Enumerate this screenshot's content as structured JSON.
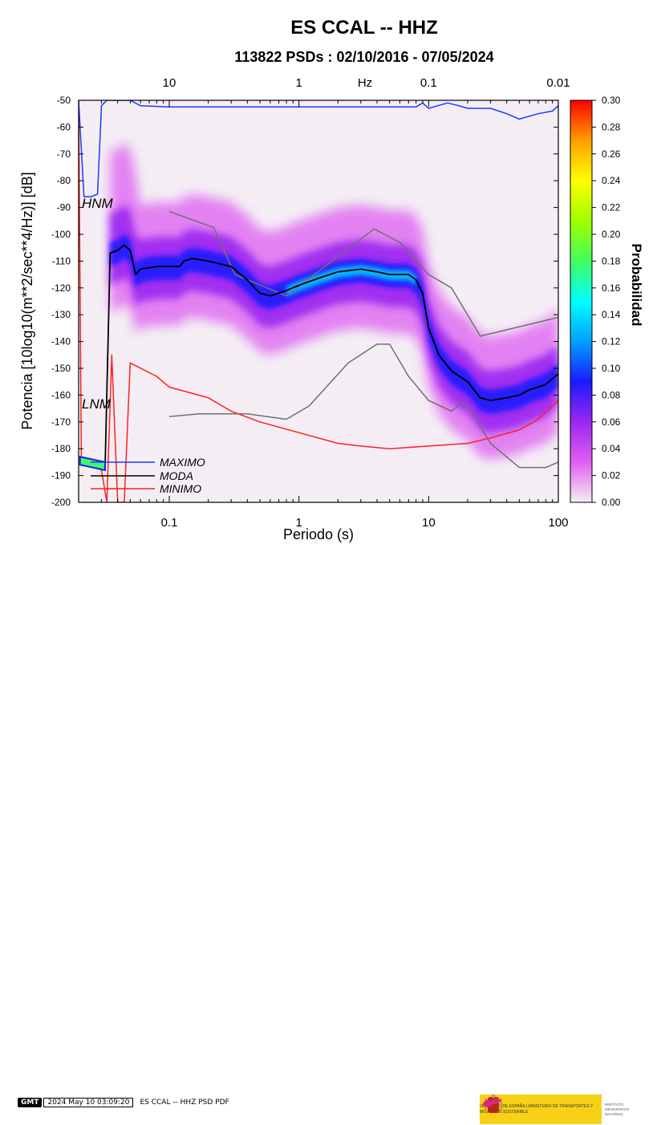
{
  "chart_data": {
    "type": "heatmap",
    "title": "ES CCAL -- HHZ",
    "subtitle": "113822 PSDs : 02/10/2016 - 07/05/2024",
    "xlabel": "Periodo (s)",
    "ylabel": "Potencia [10log10(m**2/sec**4/Hz)] [dB]",
    "x_scale": "log",
    "xlim": [
      0.02,
      100
    ],
    "ylim": [
      -200,
      -50
    ],
    "x_ticks": [
      "0.1",
      "1",
      "10",
      "100"
    ],
    "y_ticks": [
      "-50",
      "-60",
      "-70",
      "-80",
      "-90",
      "-100",
      "-110",
      "-120",
      "-130",
      "-140",
      "-150",
      "-160",
      "-170",
      "-180",
      "-190",
      "-200"
    ],
    "top_axis": {
      "label": "Hz",
      "ticks": [
        {
          "freq": "10",
          "period": 0.1
        },
        {
          "freq": "1",
          "period": 1
        },
        {
          "freq": "0.1",
          "period": 10
        },
        {
          "freq": "0.01",
          "period": 100
        }
      ]
    },
    "colorbar": {
      "label": "Probabilidad",
      "range": [
        0,
        0.3
      ],
      "ticks": [
        "0.00",
        "0.02",
        "0.04",
        "0.06",
        "0.08",
        "0.10",
        "0.12",
        "0.14",
        "0.16",
        "0.18",
        "0.20",
        "0.22",
        "0.24",
        "0.26",
        "0.28",
        "0.30"
      ],
      "colors": [
        "#f4eef4",
        "#e060f0",
        "#9a28f0",
        "#1a1aff",
        "#00a0ff",
        "#00ffff",
        "#40ff60",
        "#a0ff00",
        "#ffff00",
        "#ffa000",
        "#ff0000"
      ]
    },
    "annotations": [
      "HNM",
      "LNM"
    ],
    "series": [
      {
        "name": "MAXIMO",
        "color": "#1a3aff",
        "points": [
          [
            0.02,
            -50
          ],
          [
            0.022,
            -86
          ],
          [
            0.025,
            -86
          ],
          [
            0.028,
            -85
          ],
          [
            0.03,
            -52
          ],
          [
            0.033,
            -50
          ],
          [
            0.05,
            -50
          ],
          [
            0.06,
            -52
          ],
          [
            0.1,
            -52.5
          ],
          [
            0.3,
            -52.5
          ],
          [
            1,
            -52.5
          ],
          [
            3,
            -52.5
          ],
          [
            8,
            -52.5
          ],
          [
            9,
            -51
          ],
          [
            10,
            -53
          ],
          [
            14,
            -51
          ],
          [
            17,
            -52
          ],
          [
            20,
            -53
          ],
          [
            30,
            -53
          ],
          [
            40,
            -55
          ],
          [
            50,
            -57
          ],
          [
            70,
            -55
          ],
          [
            90,
            -54
          ],
          [
            100,
            -52
          ]
        ]
      },
      {
        "name": "MODA",
        "color": "#000000",
        "points": [
          [
            0.032,
            -187
          ],
          [
            0.035,
            -107
          ],
          [
            0.04,
            -106
          ],
          [
            0.045,
            -104
          ],
          [
            0.05,
            -106
          ],
          [
            0.055,
            -115
          ],
          [
            0.06,
            -113
          ],
          [
            0.08,
            -112
          ],
          [
            0.12,
            -112
          ],
          [
            0.13,
            -110
          ],
          [
            0.15,
            -109
          ],
          [
            0.2,
            -110
          ],
          [
            0.3,
            -112
          ],
          [
            0.4,
            -117
          ],
          [
            0.5,
            -122
          ],
          [
            0.6,
            -123
          ],
          [
            0.8,
            -121
          ],
          [
            1,
            -119
          ],
          [
            1.5,
            -116
          ],
          [
            2,
            -114
          ],
          [
            3,
            -113
          ],
          [
            4,
            -114
          ],
          [
            5,
            -115
          ],
          [
            7,
            -115
          ],
          [
            8,
            -117
          ],
          [
            9,
            -122
          ],
          [
            10,
            -135
          ],
          [
            12,
            -145
          ],
          [
            15,
            -151
          ],
          [
            20,
            -155
          ],
          [
            25,
            -161
          ],
          [
            30,
            -162
          ],
          [
            40,
            -161
          ],
          [
            50,
            -160
          ],
          [
            60,
            -158
          ],
          [
            70,
            -157
          ],
          [
            80,
            -156
          ],
          [
            100,
            -152
          ]
        ]
      },
      {
        "name": "MINIMO",
        "color": "#ff2020",
        "points": [
          [
            0.02,
            -50
          ],
          [
            0.021,
            -183
          ],
          [
            0.025,
            -186
          ],
          [
            0.03,
            -188
          ],
          [
            0.033,
            -200
          ],
          [
            0.036,
            -145
          ],
          [
            0.04,
            -200
          ],
          [
            0.045,
            -200
          ],
          [
            0.05,
            -148
          ],
          [
            0.08,
            -153
          ],
          [
            0.1,
            -157
          ],
          [
            0.2,
            -161
          ],
          [
            0.3,
            -166
          ],
          [
            0.5,
            -170
          ],
          [
            1,
            -174
          ],
          [
            2,
            -178
          ],
          [
            3,
            -179
          ],
          [
            5,
            -180
          ],
          [
            10,
            -179
          ],
          [
            20,
            -178
          ],
          [
            30,
            -176
          ],
          [
            50,
            -173
          ],
          [
            70,
            -169
          ],
          [
            100,
            -162
          ]
        ]
      },
      {
        "name": "HNM",
        "color": "#707070",
        "points": [
          [
            0.1,
            -91.5
          ],
          [
            0.22,
            -97.5
          ],
          [
            0.32,
            -115
          ],
          [
            0.8,
            -123
          ],
          [
            3.8,
            -98
          ],
          [
            6,
            -103
          ],
          [
            10,
            -115
          ],
          [
            15,
            -120
          ],
          [
            25,
            -138
          ],
          [
            100,
            -131
          ]
        ]
      },
      {
        "name": "LNM",
        "color": "#707070",
        "points": [
          [
            0.1,
            -168
          ],
          [
            0.17,
            -167
          ],
          [
            0.4,
            -167
          ],
          [
            0.8,
            -169
          ],
          [
            1.2,
            -164
          ],
          [
            2.4,
            -148
          ],
          [
            4,
            -141
          ],
          [
            5,
            -141
          ],
          [
            7,
            -153
          ],
          [
            10,
            -162
          ],
          [
            15,
            -166
          ],
          [
            18,
            -163
          ],
          [
            20,
            -164
          ],
          [
            30,
            -178
          ],
          [
            50,
            -187
          ],
          [
            80,
            -187
          ],
          [
            100,
            -185
          ]
        ]
      }
    ],
    "legend": [
      "MAXIMO",
      "MODA",
      "MINIMO"
    ],
    "legend_position": "bottom-left"
  },
  "footer": {
    "stamp_logo": "GMT",
    "stamp_date": "2024 May 10 03:09:20",
    "stamp_cmd": "ES CCAL -- HHZ PSD PDF",
    "logo_gov": "GOBIERNO DE ESPAÑA | MINISTERIO DE TRANSPORTES Y MOVILIDAD SOSTENIBLE",
    "logo_ign": "INSTITUTO GEOGRÁFICO NACIONAL"
  }
}
